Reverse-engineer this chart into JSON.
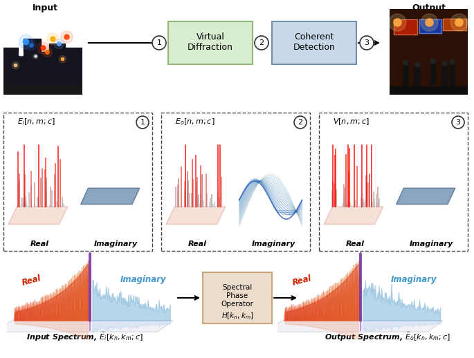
{
  "top_labels": [
    "Input",
    "Output"
  ],
  "box1_text": "Virtual\nDiffraction",
  "box2_text": "Coherent\nDetection",
  "box3_text": "Spectral\nPhase\nOperator",
  "box3_math": "$H[k_n, k_m]$",
  "circle_labels": [
    "1",
    "2",
    "3"
  ],
  "panel_labels": [
    "$E_i[n,m;c]$",
    "$E_o[n,m;c]$",
    "$V[n,m;c]$"
  ],
  "real_label": "Real",
  "imaginary_label": "Imaginary",
  "input_spectrum_label": "Input Spectrum, $\\tilde{E}_i[k_n, k_m; c]$",
  "output_spectrum_label": "Output Spectrum, $\\tilde{E}_o[k_n, k_m; c]$",
  "bg_color": "#ffffff",
  "box1_fill": "#d8ecd0",
  "box1_edge": "#90b878",
  "box2_fill": "#c8d8e8",
  "box2_edge": "#7090b0",
  "box3_fill": "#ecdccc",
  "box3_edge": "#c8a878",
  "dashed_box_color": "#444444"
}
